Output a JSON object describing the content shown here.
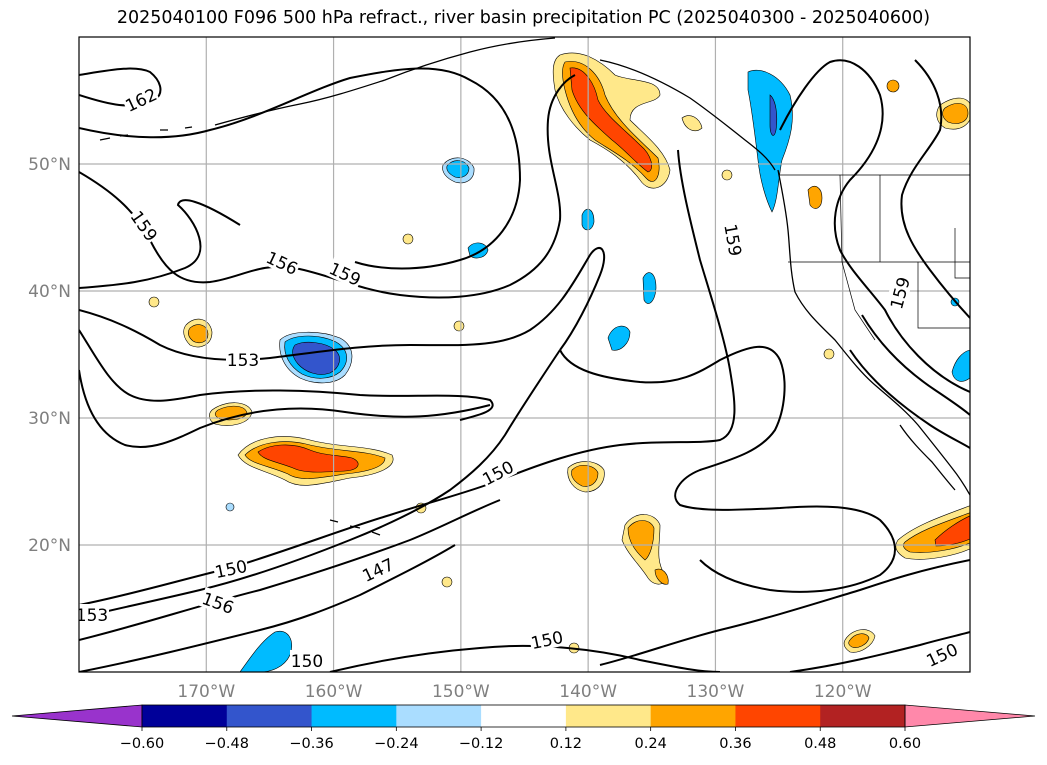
{
  "title": "2025040100 F096 500 hPa refract., river basin precipitation PC (2025040300 - 2025040600)",
  "map": {
    "lon_range": [
      -180,
      -110
    ],
    "lat_range": [
      10,
      60
    ],
    "gridlines": true,
    "lat_ticks": [
      {
        "value": 50,
        "label": "50°N"
      },
      {
        "value": 40,
        "label": "40°N"
      },
      {
        "value": 30,
        "label": "30°N"
      },
      {
        "value": 20,
        "label": "20°N"
      }
    ],
    "lon_ticks": [
      {
        "value": -170,
        "label": "170°W"
      },
      {
        "value": -160,
        "label": "160°W"
      },
      {
        "value": -150,
        "label": "150°W"
      },
      {
        "value": -140,
        "label": "140°W"
      },
      {
        "value": -130,
        "label": "130°W"
      },
      {
        "value": -120,
        "label": "120°W"
      }
    ],
    "contour_labels": [
      "162",
      "159",
      "156",
      "159",
      "153",
      "150",
      "150",
      "156",
      "147",
      "150",
      "150",
      "159",
      "159",
      "150",
      "153"
    ]
  },
  "colorbar": {
    "levels": [
      "-0.60",
      "-0.48",
      "-0.36",
      "-0.24",
      "-0.12",
      "0.12",
      "0.24",
      "0.36",
      "0.48",
      "0.60"
    ],
    "colors": [
      "#9933cc",
      "#000099",
      "#3355cc",
      "#00bbff",
      "#aaddff",
      "#ffffff",
      "#ffe88a",
      "#ffa500",
      "#ff4500",
      "#b22222",
      "#ff88aa"
    ],
    "extend": "both"
  },
  "colors": {
    "contour": "#000000",
    "grid": "#b0b0b0",
    "tick_label": "#7f7f7f"
  }
}
